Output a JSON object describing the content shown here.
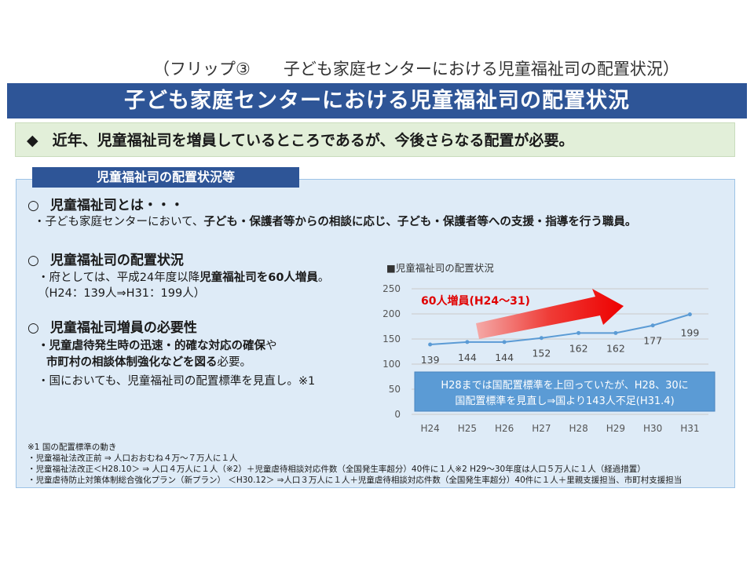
{
  "flip_label": "（フリップ③　　子ども家庭センターにおける児童福祉司の配置状況）",
  "title": "子ども家庭センターにおける児童福祉司の配置状況",
  "summary": {
    "bullet": "◆",
    "text": "近年、児童福祉司を増員しているところであるが、今後さらなる配置が必要。"
  },
  "section_tab": "児童福祉司の配置状況等",
  "definition": {
    "mark": "○",
    "heading": "児童福祉司とは・・・",
    "body_prefix": "・子ども家庭センターにおいて、",
    "body_bold": "子ども・保護者等からの相談に応じ、子ども・保護者等への支援・指導を行う職員。"
  },
  "status": {
    "mark": "○",
    "heading": "児童福祉司の配置状況",
    "line1_prefix": "・府としては、平成24年度以降",
    "line1_bold": "児童福祉司を60人増員",
    "line1_suffix": "。",
    "line2": "（H24：139人⇒H31：199人）"
  },
  "necessity": {
    "mark": "○",
    "heading": "児童福祉司増員の必要性",
    "line1_bold": "・児童虐待発生時の迅速・的確な対応の確保",
    "line1_suffix": "や",
    "line2_bold": "市町村の相談体制強化などを図る",
    "line2_suffix": "必要。",
    "line3": "・国においても、児童福祉司の配置標準を見直し。※1"
  },
  "notes": [
    "※1  国の配置標準の動き",
    "・児童福祉法改正前  ⇒  人口おおむね４万～７万人に１人",
    "・児童福祉法改正＜H28.10＞   ⇒  人口４万人に１人（※2）＋児童虐待相談対応件数（全国発生率超分）40件に１人※2  H29～30年度は人口５万人に１人（経過措置）",
    "・児童虐待防止対策体制総合強化プラン（新プラン）  ＜H30.12＞ ⇒人口３万人に１人＋児童虐待相談対応件数（全国発生率超分）40件に１人＋里親支援担当、市町村支援担当"
  ],
  "chart_data": {
    "type": "line",
    "title": "■児童福祉司の配置状況",
    "categories": [
      "H24",
      "H25",
      "H26",
      "H27",
      "H28",
      "H29",
      "H30",
      "H31"
    ],
    "values": [
      139,
      144,
      144,
      152,
      162,
      162,
      177,
      199
    ],
    "value_labels": [
      "139",
      "144",
      "144",
      "152",
      "162",
      "162",
      "177",
      "199"
    ],
    "yticks": [
      "0",
      "50",
      "100",
      "150",
      "200",
      "250"
    ],
    "ylim": [
      0,
      250
    ],
    "grid": true,
    "line_color": "#5b9bd5",
    "annotation_arrow": "60人増員(H24～31)",
    "annotation_box": [
      "H28までは国配置標準を上回っていたが、H28、30に",
      "国配置標準を見直し⇒国より143人不足(H31.4)"
    ]
  }
}
